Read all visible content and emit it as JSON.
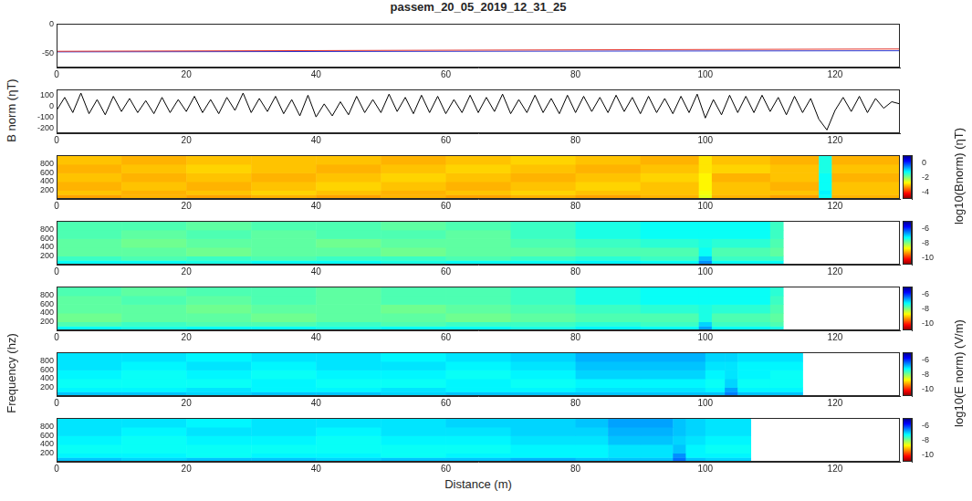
{
  "chart_data": [
    {
      "type": "line",
      "title": "passem_20_05_2019_12_31_25",
      "xlim": [
        0,
        130
      ],
      "xticks": [
        0,
        20,
        40,
        60,
        80,
        100,
        120
      ],
      "ylim": [
        -75,
        0
      ],
      "yticks": [
        -50,
        0
      ],
      "grid": false,
      "x": [
        0,
        65,
        130
      ],
      "series": [
        {
          "color": "#e0302c",
          "values": [
            -47,
            -45,
            -43
          ]
        },
        {
          "color": "#2b3bd6",
          "values": [
            -48,
            -47,
            -46
          ]
        }
      ]
    },
    {
      "type": "line",
      "ylabel": "B norm (ηT)",
      "xlim": [
        0,
        130
      ],
      "xticks": [
        0,
        20,
        40,
        60,
        80,
        100,
        120
      ],
      "ylim": [
        -250,
        150
      ],
      "yticks": [
        -200,
        -100,
        0,
        100
      ],
      "grid": false,
      "x": [
        0,
        1.25,
        2.5,
        3.75,
        5,
        6.25,
        7.5,
        8.75,
        10,
        11.25,
        12.5,
        13.75,
        15,
        16.25,
        17.5,
        18.75,
        20,
        21.25,
        22.5,
        23.75,
        25,
        26.25,
        27.5,
        28.75,
        30,
        31.25,
        32.5,
        33.75,
        35,
        36.25,
        37.5,
        38.75,
        40,
        41.25,
        42.5,
        43.75,
        45,
        46.25,
        47.5,
        48.75,
        50,
        51.25,
        52.5,
        53.75,
        55,
        56.25,
        57.5,
        58.75,
        60,
        61.25,
        62.5,
        63.75,
        65,
        66.25,
        67.5,
        68.75,
        70,
        71.25,
        72.5,
        73.75,
        75,
        76.25,
        77.5,
        78.75,
        80,
        81.25,
        82.5,
        83.75,
        85,
        86.25,
        87.5,
        88.75,
        90,
        91.25,
        92.5,
        93.75,
        95,
        96.25,
        97.5,
        98.75,
        100,
        101.25,
        102.5,
        103.75,
        105,
        106.25,
        107.5,
        108.75,
        110,
        111.25,
        112.5,
        113.75,
        115,
        116.25,
        117.5,
        118.75,
        120,
        121.25,
        122.5,
        123.75,
        125,
        126.25,
        127.5,
        128.75,
        130
      ],
      "series": [
        {
          "color": "#000000",
          "values": [
            -40,
            80,
            -60,
            120,
            -70,
            60,
            -80,
            90,
            -50,
            70,
            -60,
            50,
            -70,
            80,
            -60,
            60,
            -50,
            90,
            -60,
            60,
            -70,
            80,
            -40,
            120,
            -60,
            70,
            -50,
            90,
            -70,
            60,
            -90,
            100,
            -100,
            20,
            -90,
            40,
            -80,
            90,
            -60,
            60,
            -60,
            110,
            -50,
            80,
            -70,
            100,
            -60,
            90,
            -70,
            60,
            -60,
            100,
            -60,
            80,
            -50,
            110,
            -70,
            60,
            -60,
            100,
            -60,
            70,
            -70,
            100,
            -60,
            90,
            -50,
            80,
            -60,
            100,
            -50,
            80,
            -70,
            90,
            -60,
            70,
            -70,
            90,
            -60,
            110,
            -110,
            60,
            -80,
            100,
            -60,
            90,
            -60,
            100,
            -50,
            80,
            -80,
            90,
            -60,
            70,
            -120,
            -220,
            -40,
            80,
            -50,
            90,
            -60,
            70,
            -20,
            40,
            20
          ]
        }
      ]
    },
    {
      "type": "heatmap",
      "xlim": [
        0,
        130
      ],
      "xticks": [
        0,
        20,
        40,
        60,
        80,
        100,
        120
      ],
      "ylim": [
        0,
        1000
      ],
      "yticks": [
        200,
        400,
        600,
        800
      ],
      "x_edges": [
        0,
        10,
        20,
        30,
        40,
        50,
        60,
        70,
        80,
        90,
        99,
        101,
        110,
        117.5,
        119.5,
        130
      ],
      "y_edges": [
        0,
        100,
        200,
        400,
        600,
        800,
        1000
      ],
      "cells": [
        [
          -3.3,
          -3.2,
          -3.3,
          -3.2,
          -3.3,
          -3.2,
          -3.3,
          -3.2,
          -3.3,
          -3.2,
          -2.6,
          -3.2,
          -3.3,
          -1.3,
          -3.2
        ],
        [
          -3.1,
          -3.2,
          -3.1,
          -3.0,
          -3.1,
          -3.2,
          -3.1,
          -3.0,
          -3.1,
          -3.1,
          -2.7,
          -3.1,
          -3.1,
          -1.2,
          -3.1
        ],
        [
          -3.2,
          -3.1,
          -3.2,
          -3.1,
          -3.0,
          -3.1,
          -3.2,
          -3.1,
          -3.0,
          -3.1,
          -2.8,
          -3.1,
          -3.2,
          -1.3,
          -3.1
        ],
        [
          -3.1,
          -3.2,
          -3.1,
          -3.2,
          -3.1,
          -3.0,
          -3.1,
          -3.2,
          -3.1,
          -3.0,
          -2.8,
          -3.2,
          -3.1,
          -1.3,
          -3.2
        ],
        [
          -3.2,
          -3.1,
          -3.0,
          -3.1,
          -3.2,
          -3.1,
          -3.0,
          -3.1,
          -3.2,
          -3.1,
          -2.9,
          -3.0,
          -3.1,
          -1.4,
          -3.1
        ],
        [
          -3.1,
          -3.2,
          -3.1,
          -3.1,
          -3.1,
          -3.2,
          -3.1,
          -3.0,
          -3.1,
          -3.2,
          -2.9,
          -3.1,
          -3.2,
          -1.4,
          -3.2
        ]
      ],
      "colorbar": {
        "range": [
          -5,
          1
        ],
        "ticks": [
          -4,
          -2,
          0
        ],
        "label": "log10(Bnorm) (ηT)"
      }
    },
    {
      "type": "heatmap",
      "xlim": [
        0,
        130
      ],
      "xticks": [
        0,
        20,
        40,
        60,
        80,
        100,
        120
      ],
      "ylim": [
        0,
        1000
      ],
      "yticks": [
        200,
        400,
        600,
        800
      ],
      "x_edges": [
        0,
        10,
        20,
        30,
        40,
        50,
        60,
        70,
        80,
        90,
        99,
        101,
        110,
        112
      ],
      "y_edges": [
        0,
        100,
        200,
        400,
        600,
        800,
        1000
      ],
      "cells": [
        [
          -7.3,
          -7.3,
          -7.4,
          -7.3,
          -7.3,
          -7.4,
          -7.3,
          -7.3,
          -7.2,
          -7.3,
          -6.6,
          -7.3,
          -7.3
        ],
        [
          -7.6,
          -7.7,
          -7.6,
          -7.7,
          -7.6,
          -7.6,
          -7.7,
          -7.6,
          -7.5,
          -7.6,
          -6.9,
          -7.6,
          -7.6
        ],
        [
          -7.8,
          -7.8,
          -7.9,
          -7.8,
          -7.8,
          -7.9,
          -7.8,
          -7.8,
          -7.7,
          -7.7,
          -7.3,
          -7.7,
          -7.8
        ],
        [
          -7.8,
          -7.9,
          -7.8,
          -7.8,
          -7.9,
          -7.8,
          -7.8,
          -7.7,
          -7.6,
          -7.5,
          -7.4,
          -7.5,
          -7.7
        ],
        [
          -7.7,
          -7.8,
          -7.7,
          -7.8,
          -7.7,
          -7.7,
          -7.8,
          -7.6,
          -7.4,
          -7.3,
          -7.3,
          -7.3,
          -7.6
        ],
        [
          -7.7,
          -7.7,
          -7.8,
          -7.7,
          -7.7,
          -7.8,
          -7.7,
          -7.6,
          -7.4,
          -7.3,
          -7.3,
          -7.3,
          -7.6
        ]
      ],
      "colorbar": {
        "range": [
          -11,
          -5
        ],
        "ticks": [
          -10,
          -8,
          -6
        ]
      }
    },
    {
      "type": "heatmap",
      "xlim": [
        0,
        130
      ],
      "xticks": [
        0,
        20,
        40,
        60,
        80,
        100,
        120
      ],
      "ylim": [
        0,
        1000
      ],
      "yticks": [
        200,
        400,
        600,
        800
      ],
      "x_edges": [
        0,
        10,
        20,
        30,
        40,
        50,
        60,
        70,
        80,
        90,
        99,
        101,
        110,
        112
      ],
      "y_edges": [
        0,
        100,
        200,
        400,
        600,
        800,
        1000
      ],
      "cells": [
        [
          -7.3,
          -7.4,
          -7.3,
          -7.3,
          -7.4,
          -7.3,
          -7.3,
          -7.4,
          -7.2,
          -7.3,
          -6.7,
          -7.3,
          -7.4
        ],
        [
          -7.7,
          -7.6,
          -7.7,
          -7.7,
          -7.6,
          -7.7,
          -7.6,
          -7.6,
          -7.5,
          -7.6,
          -7.0,
          -7.6,
          -7.7
        ],
        [
          -7.9,
          -7.8,
          -7.8,
          -7.9,
          -7.8,
          -7.8,
          -7.9,
          -7.8,
          -7.7,
          -7.7,
          -7.4,
          -7.7,
          -7.8
        ],
        [
          -7.8,
          -7.8,
          -7.9,
          -7.8,
          -7.8,
          -7.9,
          -7.8,
          -7.7,
          -7.6,
          -7.5,
          -7.4,
          -7.5,
          -7.7
        ],
        [
          -7.8,
          -7.7,
          -7.8,
          -7.7,
          -7.8,
          -7.7,
          -7.7,
          -7.6,
          -7.4,
          -7.3,
          -7.3,
          -7.3,
          -7.6
        ],
        [
          -7.7,
          -7.8,
          -7.7,
          -7.7,
          -7.8,
          -7.7,
          -7.7,
          -7.6,
          -7.4,
          -7.3,
          -7.3,
          -7.3,
          -7.5
        ]
      ],
      "colorbar": {
        "range": [
          -11,
          -5
        ],
        "ticks": [
          -10,
          -8,
          -6
        ]
      }
    },
    {
      "type": "heatmap",
      "ylabel": "Frequency (hz)",
      "xlim": [
        0,
        130
      ],
      "xticks": [
        0,
        20,
        40,
        60,
        80,
        100,
        120
      ],
      "ylim": [
        0,
        1000
      ],
      "yticks": [
        200,
        400,
        600,
        800
      ],
      "x_edges": [
        0,
        10,
        20,
        30,
        40,
        50,
        60,
        70,
        80,
        90,
        100,
        103,
        105,
        110,
        115
      ],
      "y_edges": [
        0,
        100,
        200,
        400,
        600,
        800,
        1000
      ],
      "cells": [
        [
          -6.9,
          -6.9,
          -7.0,
          -6.9,
          -6.9,
          -7.0,
          -6.9,
          -6.9,
          -6.9,
          -6.9,
          -6.9,
          -6.5,
          -6.9,
          -6.9
        ],
        [
          -7.2,
          -7.2,
          -7.1,
          -7.2,
          -7.2,
          -7.1,
          -7.2,
          -7.2,
          -7.1,
          -7.1,
          -7.2,
          -6.7,
          -7.2,
          -7.2
        ],
        [
          -7.3,
          -7.3,
          -7.3,
          -7.2,
          -7.3,
          -7.3,
          -7.2,
          -7.3,
          -7.2,
          -7.2,
          -7.3,
          -7.0,
          -7.3,
          -7.3
        ],
        [
          -7.2,
          -7.3,
          -7.2,
          -7.3,
          -7.2,
          -7.2,
          -7.3,
          -7.2,
          -7.0,
          -7.0,
          -7.2,
          -7.1,
          -7.2,
          -7.3
        ],
        [
          -7.1,
          -7.2,
          -7.1,
          -7.2,
          -7.1,
          -7.1,
          -7.2,
          -7.1,
          -6.9,
          -6.9,
          -7.1,
          -7.1,
          -7.2,
          -7.2
        ],
        [
          -7.1,
          -7.1,
          -7.2,
          -7.1,
          -7.1,
          -7.2,
          -7.1,
          -7.0,
          -6.8,
          -6.8,
          -7.0,
          -7.0,
          -7.1,
          -7.1
        ]
      ],
      "colorbar": {
        "range": [
          -11,
          -5
        ],
        "ticks": [
          -10,
          -8,
          -6
        ],
        "label": "log10(E norm) (V/m)"
      }
    },
    {
      "type": "heatmap",
      "xlabel": "Distance (m)",
      "xlim": [
        0,
        130
      ],
      "xticks": [
        0,
        20,
        40,
        60,
        80,
        100,
        120
      ],
      "ylim": [
        0,
        1000
      ],
      "yticks": [
        200,
        400,
        600,
        800
      ],
      "x_edges": [
        0,
        10,
        20,
        30,
        40,
        50,
        60,
        70,
        80,
        85,
        90,
        95,
        97,
        100,
        107
      ],
      "y_edges": [
        0,
        100,
        200,
        400,
        600,
        800,
        1000
      ],
      "cells": [
        [
          -6.9,
          -7.0,
          -6.9,
          -6.9,
          -7.0,
          -6.9,
          -6.9,
          -6.8,
          -6.9,
          -6.9,
          -6.9,
          -6.4,
          -6.9,
          -7.0
        ],
        [
          -7.2,
          -7.2,
          -7.3,
          -7.2,
          -7.2,
          -7.3,
          -7.2,
          -7.2,
          -7.2,
          -7.1,
          -7.1,
          -6.6,
          -7.2,
          -7.2
        ],
        [
          -7.3,
          -7.3,
          -7.3,
          -7.3,
          -7.3,
          -7.3,
          -7.3,
          -7.2,
          -7.2,
          -7.1,
          -7.1,
          -6.9,
          -7.2,
          -7.3
        ],
        [
          -7.2,
          -7.3,
          -7.2,
          -7.2,
          -7.3,
          -7.2,
          -7.2,
          -7.1,
          -7.1,
          -6.9,
          -6.9,
          -7.0,
          -7.1,
          -7.2
        ],
        [
          -7.1,
          -7.2,
          -7.1,
          -7.1,
          -7.2,
          -7.1,
          -7.1,
          -7.0,
          -7.0,
          -6.8,
          -6.8,
          -6.9,
          -7.0,
          -7.1
        ],
        [
          -7.1,
          -7.1,
          -7.2,
          -7.1,
          -7.1,
          -7.1,
          -7.0,
          -7.0,
          -6.9,
          -6.7,
          -6.7,
          -6.9,
          -7.0,
          -7.1
        ]
      ],
      "colorbar": {
        "range": [
          -11,
          -5
        ],
        "ticks": [
          -10,
          -8,
          -6
        ]
      }
    }
  ]
}
